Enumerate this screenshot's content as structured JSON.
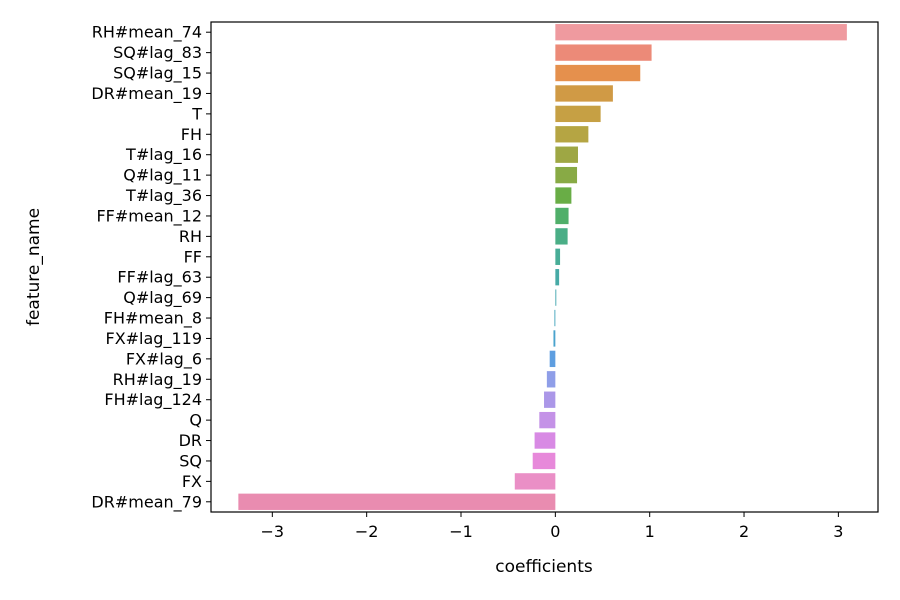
{
  "chart_data": {
    "type": "bar",
    "orientation": "horizontal",
    "title": "",
    "xlabel": "coefficients",
    "ylabel": "feature_name",
    "xlim": [
      -3.65,
      3.42
    ],
    "xticks": [
      -3,
      -2,
      -1,
      0,
      1,
      2,
      3
    ],
    "xtick_labels": [
      "−3",
      "−2",
      "−1",
      "0",
      "1",
      "2",
      "3"
    ],
    "grid": false,
    "legend": "none",
    "categories": [
      "RH#mean_74",
      "SQ#lag_83",
      "SQ#lag_15",
      "DR#mean_19",
      "T",
      "FH",
      "T#lag_16",
      "Q#lag_11",
      "T#lag_36",
      "FF#mean_12",
      "RH",
      "FF",
      "FF#lag_63",
      "Q#lag_69",
      "FH#mean_8",
      "FX#lag_119",
      "FX#lag_6",
      "RH#lag_19",
      "FH#lag_124",
      "Q",
      "DR",
      "SQ",
      "FX",
      "DR#mean_79"
    ],
    "values": [
      3.09,
      1.02,
      0.9,
      0.61,
      0.48,
      0.35,
      0.24,
      0.23,
      0.17,
      0.14,
      0.13,
      0.05,
      0.04,
      0.01,
      -0.01,
      -0.02,
      -0.06,
      -0.09,
      -0.12,
      -0.17,
      -0.22,
      -0.24,
      -0.43,
      -3.36
    ],
    "colors": [
      "#ef9a9f",
      "#ec8a78",
      "#e5904d",
      "#d09a45",
      "#c6a044",
      "#b5a543",
      "#9ea744",
      "#88aa45",
      "#69ad46",
      "#50af6a",
      "#4aae86",
      "#48ad97",
      "#47aaa6",
      "#47a8b1",
      "#48a6bd",
      "#4aa3cd",
      "#5e9ee0",
      "#8f9ee8",
      "#ab97e8",
      "#c492e7",
      "#d88ae4",
      "#e789da",
      "#ea8fc6",
      "#e98cb0"
    ]
  }
}
